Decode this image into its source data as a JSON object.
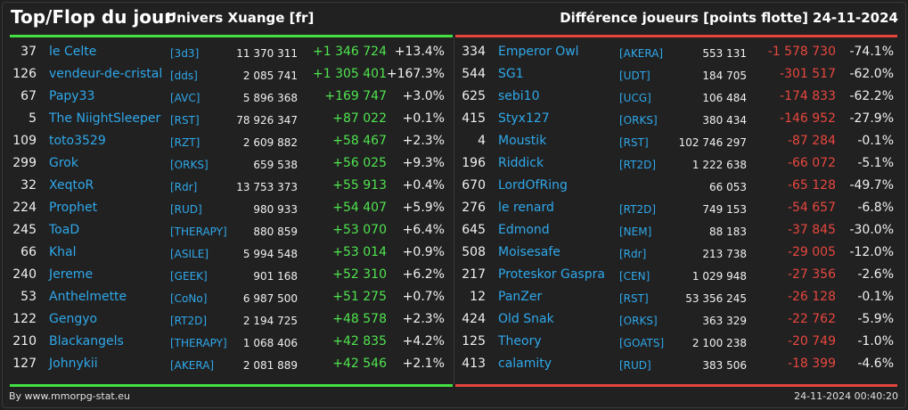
{
  "header": {
    "title": "Top/Flop du jour",
    "universe": "Univers Xuange [fr]",
    "subtitle": "Différence joueurs [points flotte]",
    "date": "24-11-2024"
  },
  "footer": {
    "source": "By www.mmorpg-stat.eu",
    "timestamp": "24-11-2024 00:40:20"
  },
  "colors": {
    "positive": "#4fe44f",
    "negative": "#e8473f",
    "link": "#2fa8ea"
  },
  "top": [
    {
      "rank": "37",
      "name": "le Celte",
      "alliance": "[3d3]",
      "points": "11 370 311",
      "diff": "+1 346 724",
      "pct": "+13.4%"
    },
    {
      "rank": "126",
      "name": "vendeur-de-cristal",
      "alliance": "[dds]",
      "points": "2 085 741",
      "diff": "+1 305 401",
      "pct": "+167.3%"
    },
    {
      "rank": "67",
      "name": "Papy33",
      "alliance": "[AVC]",
      "points": "5 896 368",
      "diff": "+169 747",
      "pct": "+3.0%"
    },
    {
      "rank": "5",
      "name": "The NiightSleeper",
      "alliance": "[RST]",
      "points": "78 926 347",
      "diff": "+87 022",
      "pct": "+0.1%"
    },
    {
      "rank": "109",
      "name": "toto3529",
      "alliance": "[RZT]",
      "points": "2 609 882",
      "diff": "+58 467",
      "pct": "+2.3%"
    },
    {
      "rank": "299",
      "name": "Grok",
      "alliance": "[ORKS]",
      "points": "659 538",
      "diff": "+56 025",
      "pct": "+9.3%"
    },
    {
      "rank": "32",
      "name": "XeqtoR",
      "alliance": "[Rdr]",
      "points": "13 753 373",
      "diff": "+55 913",
      "pct": "+0.4%"
    },
    {
      "rank": "224",
      "name": "Prophet",
      "alliance": "[RUD]",
      "points": "980 933",
      "diff": "+54 407",
      "pct": "+5.9%"
    },
    {
      "rank": "245",
      "name": "ToaD",
      "alliance": "[THERAPY]",
      "points": "880 859",
      "diff": "+53 070",
      "pct": "+6.4%"
    },
    {
      "rank": "66",
      "name": "Khal",
      "alliance": "[ASILE]",
      "points": "5 994 548",
      "diff": "+53 014",
      "pct": "+0.9%"
    },
    {
      "rank": "240",
      "name": "Jereme",
      "alliance": "[GEEK]",
      "points": "901 168",
      "diff": "+52 310",
      "pct": "+6.2%"
    },
    {
      "rank": "53",
      "name": "Anthelmette",
      "alliance": "[CoNo]",
      "points": "6 987 500",
      "diff": "+51 275",
      "pct": "+0.7%"
    },
    {
      "rank": "122",
      "name": "Gengyo",
      "alliance": "[RT2D]",
      "points": "2 194 725",
      "diff": "+48 578",
      "pct": "+2.3%"
    },
    {
      "rank": "210",
      "name": "Blackangels",
      "alliance": "[THERAPY]",
      "points": "1 068 406",
      "diff": "+42 835",
      "pct": "+4.2%"
    },
    {
      "rank": "127",
      "name": "Johnykii",
      "alliance": "[AKERA]",
      "points": "2 081 889",
      "diff": "+42 546",
      "pct": "+2.1%"
    }
  ],
  "flop": [
    {
      "rank": "334",
      "name": "Emperor Owl",
      "alliance": "[AKERA]",
      "points": "553 131",
      "diff": "-1 578 730",
      "pct": "-74.1%"
    },
    {
      "rank": "544",
      "name": "SG1",
      "alliance": "[UDT]",
      "points": "184 705",
      "diff": "-301 517",
      "pct": "-62.0%"
    },
    {
      "rank": "625",
      "name": "sebi10",
      "alliance": "[UCG]",
      "points": "106 484",
      "diff": "-174 833",
      "pct": "-62.2%"
    },
    {
      "rank": "415",
      "name": "Styx127",
      "alliance": "[ORKS]",
      "points": "380 434",
      "diff": "-146 952",
      "pct": "-27.9%"
    },
    {
      "rank": "4",
      "name": "Moustik",
      "alliance": "[RST]",
      "points": "102 746 297",
      "diff": "-87 284",
      "pct": "-0.1%"
    },
    {
      "rank": "196",
      "name": "Riddick",
      "alliance": "[RT2D]",
      "points": "1 222 638",
      "diff": "-66 072",
      "pct": "-5.1%"
    },
    {
      "rank": "670",
      "name": "LordOfRing",
      "alliance": "",
      "points": "66 053",
      "diff": "-65 128",
      "pct": "-49.7%"
    },
    {
      "rank": "276",
      "name": "le renard",
      "alliance": "[RT2D]",
      "points": "749 153",
      "diff": "-54 657",
      "pct": "-6.8%"
    },
    {
      "rank": "645",
      "name": "Edmond",
      "alliance": "[NEM]",
      "points": "88 183",
      "diff": "-37 845",
      "pct": "-30.0%"
    },
    {
      "rank": "508",
      "name": "Moisesafe",
      "alliance": "[Rdr]",
      "points": "213 738",
      "diff": "-29 005",
      "pct": "-12.0%"
    },
    {
      "rank": "217",
      "name": "Proteskor Gaspra",
      "alliance": "[CEN]",
      "points": "1 029 948",
      "diff": "-27 356",
      "pct": "-2.6%"
    },
    {
      "rank": "12",
      "name": "PanZer",
      "alliance": "[RST]",
      "points": "53 356 245",
      "diff": "-26 128",
      "pct": "-0.1%"
    },
    {
      "rank": "424",
      "name": "Old Snak",
      "alliance": "[ORKS]",
      "points": "363 329",
      "diff": "-22 762",
      "pct": "-5.9%"
    },
    {
      "rank": "125",
      "name": "Theory",
      "alliance": "[GOATS]",
      "points": "2 100 238",
      "diff": "-20 749",
      "pct": "-1.0%"
    },
    {
      "rank": "413",
      "name": "calamity",
      "alliance": "[RUD]",
      "points": "383 506",
      "diff": "-18 399",
      "pct": "-4.6%"
    }
  ]
}
